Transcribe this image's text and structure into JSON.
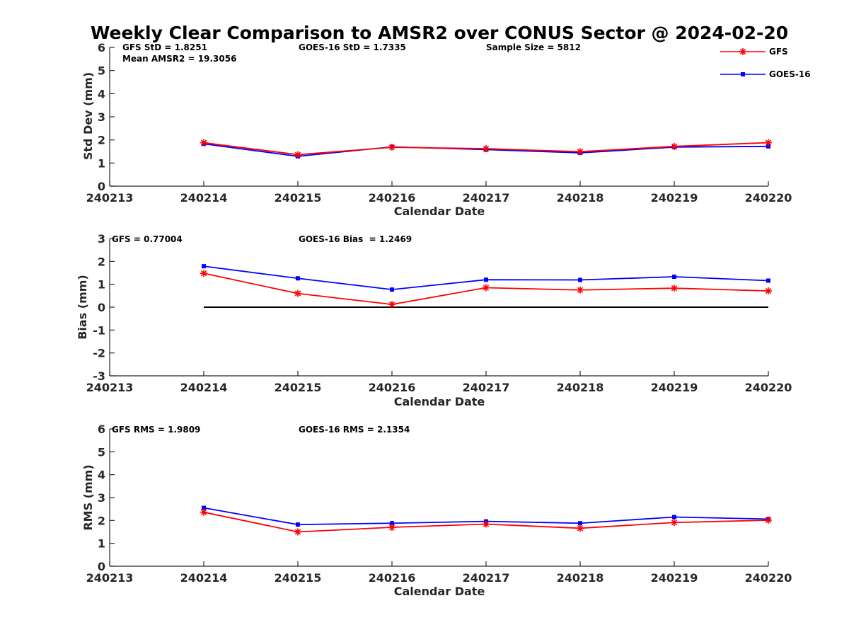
{
  "chart_data": {
    "title": "Weekly Clear Comparison to AMSR2 over CONUS Sector @ 2024-02-20",
    "legend": {
      "position": "top-right",
      "entries": [
        {
          "name": "GFS",
          "color": "#ff0000",
          "marker": "asterisk"
        },
        {
          "name": "GOES-16",
          "color": "#0000ff",
          "marker": "square"
        }
      ]
    },
    "panels": [
      {
        "type": "line",
        "xlabel": "Calendar Date",
        "ylabel": "Std Dev (mm)",
        "x_ticks": [
          "240213",
          "240214",
          "240215",
          "240216",
          "240217",
          "240218",
          "240219",
          "240220"
        ],
        "xlim": [
          0,
          7
        ],
        "ylim": [
          0,
          6
        ],
        "y_ticks": [
          "0",
          "1",
          "2",
          "3",
          "4",
          "5",
          "6"
        ],
        "zero_line": false,
        "x": [
          1,
          2,
          3,
          4,
          5,
          6,
          7
        ],
        "series": [
          {
            "name": "GFS",
            "values": [
              1.88,
              1.36,
              1.68,
              1.62,
              1.49,
              1.72,
              1.88
            ]
          },
          {
            "name": "GOES-16",
            "values": [
              1.83,
              1.29,
              1.7,
              1.58,
              1.44,
              1.69,
              1.72
            ]
          }
        ],
        "annotations": [
          "GFS StD = 1.8251",
          "Mean AMSR2 = 19.3056",
          "GOES-16 StD = 1.7335",
          "Sample Size = 5812"
        ]
      },
      {
        "type": "line",
        "xlabel": "Calendar Date",
        "ylabel": "Bias (mm)",
        "x_ticks": [
          "240213",
          "240214",
          "240215",
          "240216",
          "240217",
          "240218",
          "240219",
          "240220"
        ],
        "xlim": [
          0,
          7
        ],
        "ylim": [
          -3,
          3
        ],
        "y_ticks": [
          "-3",
          "-2",
          "-1",
          "0",
          "1",
          "2",
          "3"
        ],
        "zero_line": true,
        "x": [
          1,
          2,
          3,
          4,
          5,
          6,
          7
        ],
        "series": [
          {
            "name": "GFS",
            "values": [
              1.48,
              0.6,
              0.12,
              0.85,
              0.75,
              0.83,
              0.71
            ]
          },
          {
            "name": "GOES-16",
            "values": [
              1.79,
              1.26,
              0.77,
              1.2,
              1.19,
              1.33,
              1.16
            ]
          }
        ],
        "annotations": [
          "GFS = 0.77004",
          "GOES-16 Bias  = 1.2469"
        ]
      },
      {
        "type": "line",
        "xlabel": "Calendar Date",
        "ylabel": "RMS (mm)",
        "x_ticks": [
          "240213",
          "240214",
          "240215",
          "240216",
          "240217",
          "240218",
          "240219",
          "240220"
        ],
        "xlim": [
          0,
          7
        ],
        "ylim": [
          0,
          6
        ],
        "y_ticks": [
          "0",
          "1",
          "2",
          "3",
          "4",
          "5",
          "6"
        ],
        "zero_line": false,
        "x": [
          1,
          2,
          3,
          4,
          5,
          6,
          7
        ],
        "series": [
          {
            "name": "GFS",
            "values": [
              2.36,
              1.5,
              1.7,
              1.84,
              1.66,
              1.91,
              2.01
            ]
          },
          {
            "name": "GOES-16",
            "values": [
              2.55,
              1.82,
              1.88,
              1.96,
              1.88,
              2.15,
              2.06
            ]
          }
        ],
        "annotations": [
          "GFS RMS = 1.9809",
          "GOES-16 RMS = 2.1354"
        ]
      }
    ]
  }
}
